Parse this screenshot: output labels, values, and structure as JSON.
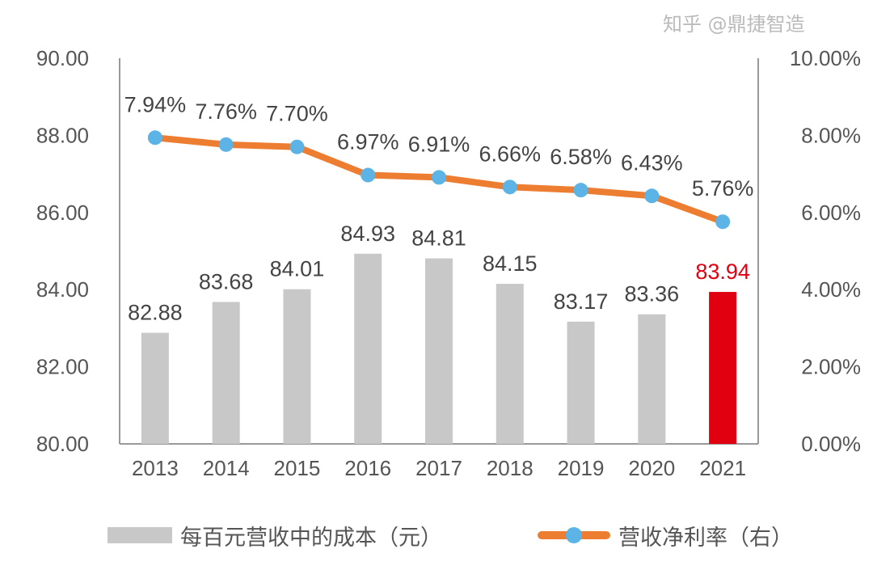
{
  "chart_data": {
    "type": "bar+line",
    "categories": [
      "2013",
      "2014",
      "2015",
      "2016",
      "2017",
      "2018",
      "2019",
      "2020",
      "2021"
    ],
    "series": [
      {
        "name": "每百元营收中的成本（元）",
        "type": "bar",
        "axis": "left",
        "values": [
          82.88,
          83.68,
          84.01,
          84.93,
          84.81,
          84.15,
          83.17,
          83.36,
          83.94
        ],
        "labels": [
          "82.88",
          "83.68",
          "84.01",
          "84.93",
          "84.81",
          "84.15",
          "83.17",
          "83.36",
          "83.94"
        ],
        "color": "#c8c8c8",
        "highlight_color": "#e0000f",
        "highlight_index": 8
      },
      {
        "name": "营收净利率（右）",
        "type": "line",
        "axis": "right",
        "values": [
          7.94,
          7.76,
          7.7,
          6.97,
          6.91,
          6.66,
          6.58,
          6.43,
          5.76
        ],
        "labels": [
          "7.94%",
          "7.76%",
          "7.70%",
          "6.97%",
          "6.91%",
          "6.66%",
          "6.58%",
          "6.43%",
          "5.76%"
        ],
        "color": "#ed7d31",
        "marker_color": "#5bb3e6"
      }
    ],
    "left_axis": {
      "ylim": [
        80,
        90
      ],
      "ticks": [
        "80.00",
        "82.00",
        "84.00",
        "86.00",
        "88.00",
        "90.00"
      ]
    },
    "right_axis": {
      "ylim": [
        0,
        10
      ],
      "ticks": [
        "0.00%",
        "2.00%",
        "4.00%",
        "6.00%",
        "8.00%",
        "10.00%"
      ]
    },
    "grid": false,
    "legend_position": "bottom"
  },
  "watermark": "知乎 @鼎捷智造"
}
